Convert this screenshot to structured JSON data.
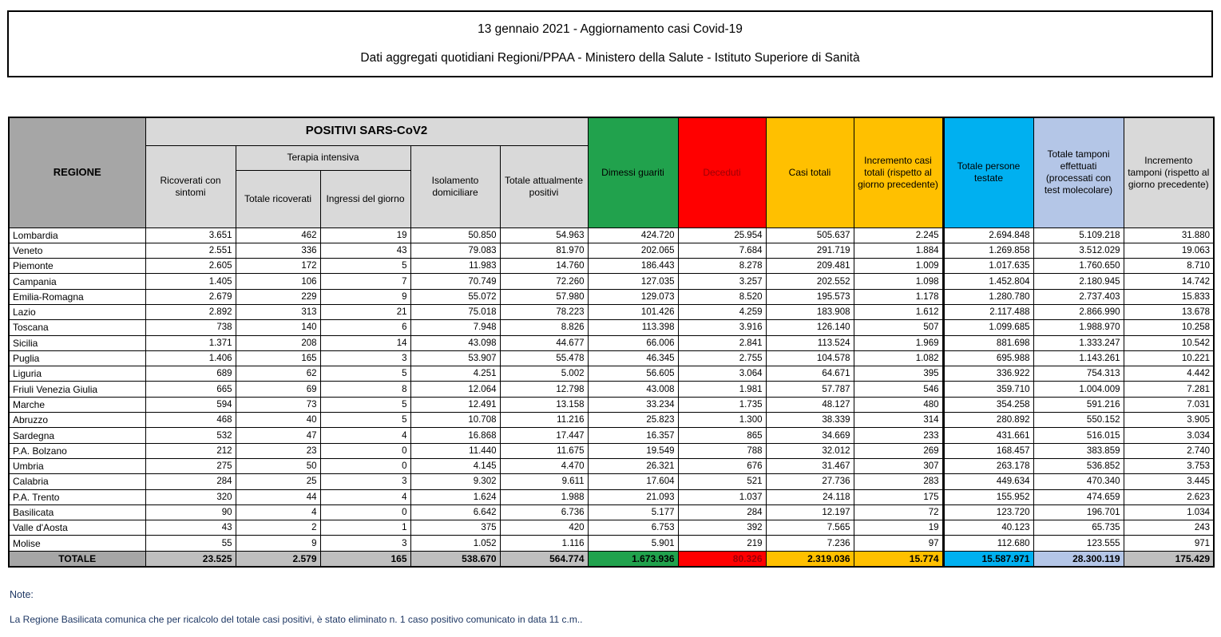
{
  "title": {
    "line1": "13 gennaio 2021 - Aggiornamento casi Covid-19",
    "line2": "Dati aggregati quotidiani Regioni/PPAA - Ministero della Salute - Istituto Superiore di Sanità"
  },
  "colors": {
    "green": "#21a24d",
    "red": "#ff0000",
    "yellow": "#ffc000",
    "cyan": "#00b0f0",
    "light_blue": "#b4c6e7",
    "gray_header": "#a6a6a6",
    "gray_light": "#d9d9d9",
    "gray_totals": "#bfbfbf",
    "deceduti_text": "#9c0006",
    "note_text": "#1f3864"
  },
  "table": {
    "headers": {
      "regione": "REGIONE",
      "positivi_group": "POSITIVI SARS-CoV2",
      "terapia_group": "Terapia intensiva",
      "ricoverati": "Ricoverati con sintomi",
      "ti_totale": "Totale ricoverati",
      "ti_ingressi": "Ingressi del giorno",
      "isolamento": "Isolamento domiciliare",
      "tot_positivi": "Totale attualmente positivi",
      "dimessi": "Dimessi guariti",
      "deceduti": "Deceduti",
      "casi_totali": "Casi totali",
      "incr_casi": "Incremento casi totali (rispetto al giorno precedente)",
      "testate": "Totale persone testate",
      "tamponi": "Totale tamponi effettuati (processati con test molecolare)",
      "incr_tamponi": "Incremento tamponi (rispetto al giorno precedente)"
    },
    "column_keys": [
      "ricoverati-con-sintomi",
      "terapia-totale-ricoverati",
      "terapia-ingressi-giorno",
      "isolamento-domiciliare",
      "totale-attualmente-positivi",
      "dimessi-guariti",
      "deceduti",
      "casi-totali",
      "incremento-casi-totali",
      "totale-persone-testate",
      "totale-tamponi",
      "incremento-tamponi"
    ],
    "rows": [
      {
        "regione": "Lombardia",
        "values": [
          "3.651",
          "462",
          "19",
          "50.850",
          "54.963",
          "424.720",
          "25.954",
          "505.637",
          "2.245",
          "2.694.848",
          "5.109.218",
          "31.880"
        ]
      },
      {
        "regione": "Veneto",
        "values": [
          "2.551",
          "336",
          "43",
          "79.083",
          "81.970",
          "202.065",
          "7.684",
          "291.719",
          "1.884",
          "1.269.858",
          "3.512.029",
          "19.063"
        ]
      },
      {
        "regione": "Piemonte",
        "values": [
          "2.605",
          "172",
          "5",
          "11.983",
          "14.760",
          "186.443",
          "8.278",
          "209.481",
          "1.009",
          "1.017.635",
          "1.760.650",
          "8.710"
        ]
      },
      {
        "regione": "Campania",
        "values": [
          "1.405",
          "106",
          "7",
          "70.749",
          "72.260",
          "127.035",
          "3.257",
          "202.552",
          "1.098",
          "1.452.804",
          "2.180.945",
          "14.742"
        ]
      },
      {
        "regione": "Emilia-Romagna",
        "values": [
          "2.679",
          "229",
          "9",
          "55.072",
          "57.980",
          "129.073",
          "8.520",
          "195.573",
          "1.178",
          "1.280.780",
          "2.737.403",
          "15.833"
        ]
      },
      {
        "regione": "Lazio",
        "values": [
          "2.892",
          "313",
          "21",
          "75.018",
          "78.223",
          "101.426",
          "4.259",
          "183.908",
          "1.612",
          "2.117.488",
          "2.866.990",
          "13.678"
        ]
      },
      {
        "regione": "Toscana",
        "values": [
          "738",
          "140",
          "6",
          "7.948",
          "8.826",
          "113.398",
          "3.916",
          "126.140",
          "507",
          "1.099.685",
          "1.988.970",
          "10.258"
        ]
      },
      {
        "regione": "Sicilia",
        "values": [
          "1.371",
          "208",
          "14",
          "43.098",
          "44.677",
          "66.006",
          "2.841",
          "113.524",
          "1.969",
          "881.698",
          "1.333.247",
          "10.542"
        ]
      },
      {
        "regione": "Puglia",
        "values": [
          "1.406",
          "165",
          "3",
          "53.907",
          "55.478",
          "46.345",
          "2.755",
          "104.578",
          "1.082",
          "695.988",
          "1.143.261",
          "10.221"
        ]
      },
      {
        "regione": "Liguria",
        "values": [
          "689",
          "62",
          "5",
          "4.251",
          "5.002",
          "56.605",
          "3.064",
          "64.671",
          "395",
          "336.922",
          "754.313",
          "4.442"
        ]
      },
      {
        "regione": "Friuli Venezia Giulia",
        "values": [
          "665",
          "69",
          "8",
          "12.064",
          "12.798",
          "43.008",
          "1.981",
          "57.787",
          "546",
          "359.710",
          "1.004.009",
          "7.281"
        ]
      },
      {
        "regione": "Marche",
        "values": [
          "594",
          "73",
          "5",
          "12.491",
          "13.158",
          "33.234",
          "1.735",
          "48.127",
          "480",
          "354.258",
          "591.216",
          "7.031"
        ]
      },
      {
        "regione": "Abruzzo",
        "values": [
          "468",
          "40",
          "5",
          "10.708",
          "11.216",
          "25.823",
          "1.300",
          "38.339",
          "314",
          "280.892",
          "550.152",
          "3.905"
        ]
      },
      {
        "regione": "Sardegna",
        "values": [
          "532",
          "47",
          "4",
          "16.868",
          "17.447",
          "16.357",
          "865",
          "34.669",
          "233",
          "431.661",
          "516.015",
          "3.034"
        ]
      },
      {
        "regione": "P.A. Bolzano",
        "values": [
          "212",
          "23",
          "0",
          "11.440",
          "11.675",
          "19.549",
          "788",
          "32.012",
          "269",
          "168.457",
          "383.859",
          "2.740"
        ]
      },
      {
        "regione": "Umbria",
        "values": [
          "275",
          "50",
          "0",
          "4.145",
          "4.470",
          "26.321",
          "676",
          "31.467",
          "307",
          "263.178",
          "536.852",
          "3.753"
        ]
      },
      {
        "regione": "Calabria",
        "values": [
          "284",
          "25",
          "3",
          "9.302",
          "9.611",
          "17.604",
          "521",
          "27.736",
          "283",
          "449.634",
          "470.340",
          "3.445"
        ]
      },
      {
        "regione": "P.A. Trento",
        "values": [
          "320",
          "44",
          "4",
          "1.624",
          "1.988",
          "21.093",
          "1.037",
          "24.118",
          "175",
          "155.952",
          "474.659",
          "2.623"
        ]
      },
      {
        "regione": "Basilicata",
        "values": [
          "90",
          "4",
          "0",
          "6.642",
          "6.736",
          "5.177",
          "284",
          "12.197",
          "72",
          "123.720",
          "196.701",
          "1.034"
        ]
      },
      {
        "regione": "Valle d'Aosta",
        "values": [
          "43",
          "2",
          "1",
          "375",
          "420",
          "6.753",
          "392",
          "7.565",
          "19",
          "40.123",
          "65.735",
          "243"
        ]
      },
      {
        "regione": "Molise",
        "values": [
          "55",
          "9",
          "3",
          "1.052",
          "1.116",
          "5.901",
          "219",
          "7.236",
          "97",
          "112.680",
          "123.555",
          "971"
        ]
      }
    ],
    "totals": {
      "label": "TOTALE",
      "values": [
        "23.525",
        "2.579",
        "165",
        "538.670",
        "564.774",
        "1.673.936",
        "80.326",
        "2.319.036",
        "15.774",
        "15.587.971",
        "28.300.119",
        "175.429"
      ]
    }
  },
  "notes": {
    "title": "Note:",
    "body": "La Regione Basilicata comunica che per ricalcolo del totale casi positivi, è stato eliminato n. 1 caso positivo comunicato in data 11 c.m.."
  }
}
